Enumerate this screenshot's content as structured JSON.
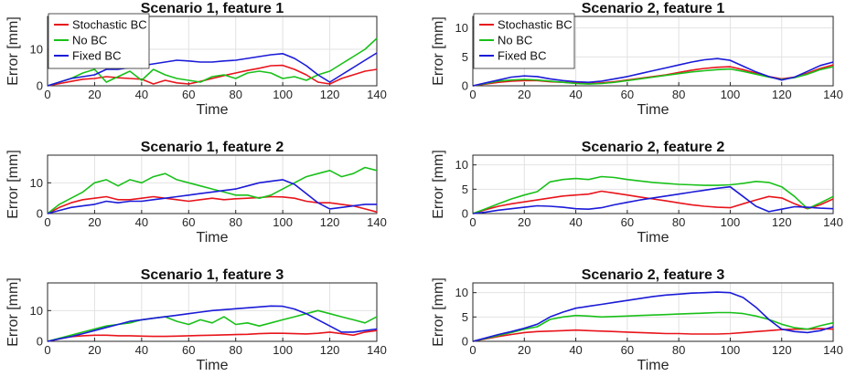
{
  "colors": {
    "Stochastic BC": "#e8141b",
    "No BC": "#19c019",
    "Fixed BC": "#1a1ad8"
  },
  "chart_data": [
    {
      "type": "line",
      "title": "Scenario 1, feature 1",
      "xlabel": "Time",
      "ylabel": "Error [mm]",
      "xlim": [
        0,
        140
      ],
      "ylim": [
        0,
        19
      ],
      "xticks": [
        0,
        20,
        40,
        60,
        80,
        100,
        120,
        140
      ],
      "yticks": [
        0,
        10
      ],
      "grid": true,
      "legend": "top-left",
      "x": [
        0,
        5,
        10,
        15,
        20,
        25,
        30,
        35,
        40,
        45,
        50,
        55,
        60,
        65,
        70,
        75,
        80,
        85,
        90,
        95,
        100,
        105,
        110,
        115,
        120,
        125,
        130,
        135,
        140
      ],
      "series": [
        {
          "name": "Stochastic BC",
          "values": [
            0,
            0.6,
            1.2,
            1.8,
            2.0,
            2.5,
            2.2,
            2.0,
            1.8,
            0.5,
            1.5,
            0.8,
            0.5,
            1.2,
            2.0,
            2.8,
            3.5,
            4.2,
            4.8,
            5.5,
            5.6,
            4.5,
            3.0,
            1.0,
            0.5,
            2.0,
            3.0,
            4.0,
            4.5
          ]
        },
        {
          "name": "No BC",
          "values": [
            0,
            1.0,
            2.0,
            3.5,
            4.5,
            1.0,
            2.5,
            4.0,
            1.5,
            4.5,
            3.0,
            2.0,
            1.5,
            1.0,
            2.5,
            3.0,
            2.0,
            3.5,
            4.0,
            3.5,
            2.0,
            2.5,
            1.5,
            3.0,
            4.0,
            6.0,
            8.0,
            10.0,
            13.0
          ]
        },
        {
          "name": "Fixed BC",
          "values": [
            0,
            1.0,
            2.0,
            2.5,
            3.0,
            4.5,
            4.5,
            5.0,
            5.5,
            6.0,
            6.5,
            7.0,
            6.8,
            6.5,
            6.5,
            6.8,
            7.0,
            7.5,
            8.0,
            8.5,
            8.8,
            7.5,
            5.5,
            3.0,
            1.0,
            3.0,
            5.0,
            7.0,
            9.0
          ]
        }
      ]
    },
    {
      "type": "line",
      "title": "Scenario 2, feature 1",
      "xlabel": "Time",
      "ylabel": "Error [mm]",
      "xlim": [
        0,
        140
      ],
      "ylim": [
        0,
        12
      ],
      "xticks": [
        0,
        20,
        40,
        60,
        80,
        100,
        120,
        140
      ],
      "yticks": [
        0,
        5,
        10
      ],
      "grid": true,
      "legend": "top-left",
      "x": [
        0,
        5,
        10,
        15,
        20,
        25,
        30,
        35,
        40,
        45,
        50,
        55,
        60,
        65,
        70,
        75,
        80,
        85,
        90,
        95,
        100,
        105,
        110,
        115,
        120,
        125,
        130,
        135,
        140
      ],
      "series": [
        {
          "name": "Stochastic BC",
          "values": [
            0,
            0.3,
            0.6,
            0.8,
            0.9,
            0.9,
            0.7,
            0.6,
            0.5,
            0.4,
            0.5,
            0.7,
            1.0,
            1.3,
            1.6,
            1.9,
            2.3,
            2.7,
            3.0,
            3.2,
            3.3,
            2.8,
            2.2,
            1.6,
            1.2,
            1.5,
            2.2,
            3.0,
            3.6
          ]
        },
        {
          "name": "No BC",
          "values": [
            0,
            0.4,
            0.8,
            1.0,
            1.1,
            1.0,
            0.8,
            0.6,
            0.4,
            0.3,
            0.4,
            0.6,
            0.9,
            1.2,
            1.5,
            1.8,
            2.1,
            2.4,
            2.6,
            2.8,
            2.9,
            2.5,
            2.0,
            1.5,
            1.1,
            1.4,
            2.0,
            2.8,
            3.3
          ]
        },
        {
          "name": "Fixed BC",
          "values": [
            0,
            0.5,
            1.0,
            1.5,
            1.7,
            1.6,
            1.2,
            0.9,
            0.7,
            0.6,
            0.8,
            1.2,
            1.6,
            2.1,
            2.6,
            3.1,
            3.6,
            4.1,
            4.5,
            4.7,
            4.4,
            3.4,
            2.4,
            1.6,
            1.0,
            1.5,
            2.5,
            3.5,
            4.1
          ]
        }
      ]
    },
    {
      "type": "line",
      "title": "Scenario 1, feature 2",
      "xlabel": "Time",
      "ylabel": "Error [mm]",
      "xlim": [
        0,
        140
      ],
      "ylim": [
        0,
        19
      ],
      "xticks": [
        0,
        20,
        40,
        60,
        80,
        100,
        120,
        140
      ],
      "yticks": [
        0,
        10
      ],
      "grid": true,
      "x": [
        0,
        5,
        10,
        15,
        20,
        25,
        30,
        35,
        40,
        45,
        50,
        55,
        60,
        65,
        70,
        75,
        80,
        85,
        90,
        95,
        100,
        105,
        110,
        115,
        120,
        125,
        130,
        135,
        140
      ],
      "series": [
        {
          "name": "Stochastic BC",
          "values": [
            0,
            2.0,
            3.5,
            4.5,
            5.0,
            5.5,
            4.5,
            4.5,
            5.0,
            5.5,
            5.0,
            4.5,
            4.0,
            4.5,
            5.0,
            4.5,
            4.8,
            5.0,
            5.2,
            5.5,
            5.4,
            5.0,
            4.0,
            3.5,
            3.5,
            3.0,
            2.5,
            1.5,
            0.5
          ]
        },
        {
          "name": "No BC",
          "values": [
            0,
            3.0,
            5.0,
            7.0,
            10.0,
            11.0,
            9.0,
            11.0,
            10.0,
            12.0,
            13.0,
            11.0,
            10.0,
            9.0,
            8.0,
            7.0,
            6.0,
            6.0,
            5.0,
            6.0,
            8.0,
            10.0,
            12.0,
            13.0,
            14.0,
            12.0,
            13.0,
            15.0,
            14.0
          ]
        },
        {
          "name": "Fixed BC",
          "values": [
            0,
            1.0,
            2.0,
            2.5,
            3.0,
            4.0,
            3.5,
            4.0,
            4.0,
            4.5,
            5.0,
            5.5,
            6.0,
            6.5,
            7.0,
            7.5,
            8.0,
            9.0,
            10.0,
            10.5,
            11.0,
            9.5,
            6.5,
            3.5,
            1.5,
            2.0,
            2.5,
            3.0,
            3.0
          ]
        }
      ]
    },
    {
      "type": "line",
      "title": "Scenario 2, feature 2",
      "xlabel": "Time",
      "ylabel": "Error [mm]",
      "xlim": [
        0,
        140
      ],
      "ylim": [
        0,
        12
      ],
      "xticks": [
        0,
        20,
        40,
        60,
        80,
        100,
        120,
        140
      ],
      "yticks": [
        0,
        5,
        10
      ],
      "grid": true,
      "x": [
        0,
        5,
        10,
        15,
        20,
        25,
        30,
        35,
        40,
        45,
        50,
        55,
        60,
        65,
        70,
        75,
        80,
        85,
        90,
        95,
        100,
        105,
        110,
        115,
        120,
        125,
        130,
        135,
        140
      ],
      "series": [
        {
          "name": "Stochastic BC",
          "values": [
            0,
            0.8,
            1.5,
            2.0,
            2.4,
            2.8,
            3.2,
            3.6,
            3.8,
            4.0,
            4.6,
            4.2,
            3.8,
            3.4,
            3.0,
            2.6,
            2.2,
            1.8,
            1.5,
            1.3,
            1.2,
            2.0,
            2.8,
            3.5,
            3.2,
            2.0,
            1.0,
            1.8,
            3.0
          ]
        },
        {
          "name": "No BC",
          "values": [
            0,
            1.0,
            2.0,
            3.0,
            3.8,
            4.5,
            6.5,
            7.0,
            7.2,
            7.0,
            7.6,
            7.4,
            7.0,
            6.7,
            6.4,
            6.2,
            6.0,
            5.9,
            5.8,
            5.8,
            5.9,
            6.2,
            6.6,
            6.4,
            5.5,
            3.5,
            1.0,
            2.2,
            3.5
          ]
        },
        {
          "name": "Fixed BC",
          "values": [
            0,
            0.3,
            0.7,
            1.0,
            1.3,
            1.6,
            1.5,
            1.3,
            1.0,
            0.9,
            1.2,
            1.8,
            2.3,
            2.8,
            3.2,
            3.6,
            4.0,
            4.4,
            4.8,
            5.2,
            5.5,
            3.5,
            1.5,
            0.4,
            0.9,
            1.4,
            1.3,
            1.1,
            1.0
          ]
        }
      ]
    },
    {
      "type": "line",
      "title": "Scenario 1, feature 3",
      "xlabel": "Time",
      "ylabel": "Error [mm]",
      "xlim": [
        0,
        140
      ],
      "ylim": [
        0,
        19
      ],
      "xticks": [
        0,
        20,
        40,
        60,
        80,
        100,
        120,
        140
      ],
      "yticks": [
        0,
        10
      ],
      "grid": true,
      "x": [
        0,
        5,
        10,
        15,
        20,
        25,
        30,
        35,
        40,
        45,
        50,
        55,
        60,
        65,
        70,
        75,
        80,
        85,
        90,
        95,
        100,
        105,
        110,
        115,
        120,
        125,
        130,
        135,
        140
      ],
      "series": [
        {
          "name": "Stochastic BC",
          "values": [
            0,
            0.8,
            1.5,
            1.8,
            2.0,
            2.0,
            1.8,
            1.8,
            1.7,
            1.6,
            1.6,
            1.7,
            1.8,
            1.9,
            2.0,
            2.1,
            2.2,
            2.3,
            2.5,
            2.6,
            2.6,
            2.5,
            2.4,
            2.6,
            3.0,
            2.5,
            2.0,
            3.0,
            3.5
          ]
        },
        {
          "name": "No BC",
          "values": [
            0,
            1.0,
            2.0,
            3.0,
            4.0,
            5.0,
            5.5,
            6.0,
            7.0,
            7.5,
            8.0,
            6.5,
            5.5,
            7.0,
            6.0,
            8.0,
            5.5,
            6.0,
            5.0,
            6.0,
            7.0,
            8.0,
            9.0,
            10.0,
            9.0,
            8.0,
            7.0,
            6.0,
            8.0
          ]
        },
        {
          "name": "Fixed BC",
          "values": [
            0,
            0.8,
            1.5,
            2.5,
            3.5,
            4.5,
            5.5,
            6.5,
            7.0,
            7.5,
            8.0,
            8.5,
            9.0,
            9.5,
            10.0,
            10.3,
            10.6,
            10.9,
            11.2,
            11.5,
            11.4,
            10.5,
            9.0,
            7.0,
            5.0,
            3.0,
            3.0,
            3.5,
            4.0
          ]
        }
      ]
    },
    {
      "type": "line",
      "title": "Scenario 2, feature 3",
      "xlabel": "Time",
      "ylabel": "Error [mm]",
      "xlim": [
        0,
        140
      ],
      "ylim": [
        0,
        12
      ],
      "xticks": [
        0,
        20,
        40,
        60,
        80,
        100,
        120,
        140
      ],
      "yticks": [
        0,
        5,
        10
      ],
      "grid": true,
      "x": [
        0,
        5,
        10,
        15,
        20,
        25,
        30,
        35,
        40,
        45,
        50,
        55,
        60,
        65,
        70,
        75,
        80,
        85,
        90,
        95,
        100,
        105,
        110,
        115,
        120,
        125,
        130,
        135,
        140
      ],
      "series": [
        {
          "name": "Stochastic BC",
          "values": [
            0,
            0.5,
            1.0,
            1.4,
            1.8,
            2.0,
            2.1,
            2.2,
            2.3,
            2.2,
            2.1,
            2.0,
            1.9,
            1.8,
            1.7,
            1.6,
            1.6,
            1.5,
            1.5,
            1.5,
            1.6,
            1.8,
            2.0,
            2.2,
            2.4,
            2.5,
            2.5,
            2.6,
            2.5
          ]
        },
        {
          "name": "No BC",
          "values": [
            0,
            0.6,
            1.2,
            1.8,
            2.5,
            3.0,
            4.5,
            5.0,
            5.3,
            5.2,
            5.0,
            5.1,
            5.2,
            5.3,
            5.4,
            5.5,
            5.6,
            5.7,
            5.8,
            5.9,
            5.9,
            5.7,
            5.2,
            4.5,
            3.5,
            2.8,
            2.5,
            3.2,
            3.8
          ]
        },
        {
          "name": "Fixed BC",
          "values": [
            0,
            0.7,
            1.4,
            2.0,
            2.7,
            3.5,
            5.0,
            6.0,
            6.8,
            7.2,
            7.6,
            8.0,
            8.4,
            8.8,
            9.2,
            9.5,
            9.7,
            9.9,
            10.0,
            10.1,
            10.0,
            9.0,
            7.0,
            4.5,
            2.5,
            2.0,
            1.8,
            2.2,
            3.0
          ]
        }
      ]
    }
  ]
}
